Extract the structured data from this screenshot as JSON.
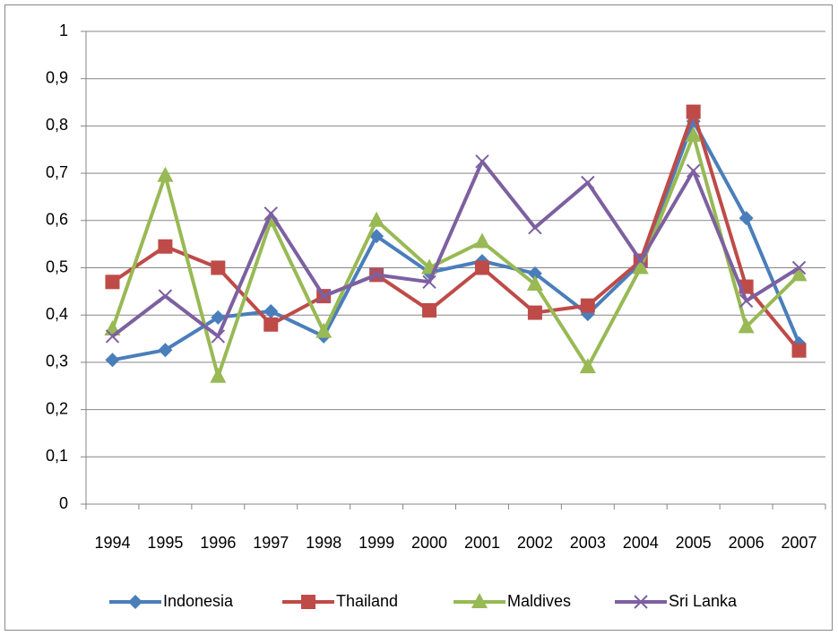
{
  "chart_data": {
    "type": "line",
    "categories": [
      "1994",
      "1995",
      "1996",
      "1997",
      "1998",
      "1999",
      "2000",
      "2001",
      "2002",
      "2003",
      "2004",
      "2005",
      "2006",
      "2007"
    ],
    "series": [
      {
        "name": "Indonesia",
        "color": "#4a7ebb",
        "marker": "diamond",
        "values": [
          0.305,
          0.326,
          0.395,
          0.408,
          0.355,
          0.567,
          0.49,
          0.514,
          0.488,
          0.402,
          0.51,
          0.81,
          0.605,
          0.34
        ]
      },
      {
        "name": "Thailand",
        "color": "#be4b48",
        "marker": "square",
        "values": [
          0.47,
          0.545,
          0.5,
          0.38,
          0.44,
          0.485,
          0.41,
          0.5,
          0.405,
          0.42,
          0.515,
          0.83,
          0.46,
          0.325
        ]
      },
      {
        "name": "Maldives",
        "color": "#98b954",
        "marker": "triangle",
        "values": [
          0.37,
          0.695,
          0.27,
          0.6,
          0.365,
          0.6,
          0.5,
          0.555,
          0.465,
          0.29,
          0.5,
          0.78,
          0.375,
          0.485
        ]
      },
      {
        "name": "Sri Lanka",
        "color": "#7d60a0",
        "marker": "x",
        "values": [
          0.355,
          0.44,
          0.355,
          0.615,
          0.44,
          0.485,
          0.47,
          0.725,
          0.585,
          0.68,
          0.515,
          0.705,
          0.43,
          0.5
        ]
      }
    ],
    "ylim": [
      0,
      1
    ],
    "yticks": [
      0,
      {
        "value": 0.1,
        "label": "0,1"
      },
      {
        "value": 0.2,
        "label": "0,2"
      },
      {
        "value": 0.3,
        "label": "0,3"
      },
      {
        "value": 0.4,
        "label": "0,4"
      },
      {
        "value": 0.5,
        "label": "0,5"
      },
      {
        "value": 0.6,
        "label": "0,6"
      },
      {
        "value": 0.7,
        "label": "0,7"
      },
      {
        "value": 0.8,
        "label": "0,8"
      },
      {
        "value": 0.9,
        "label": "0,9"
      },
      1
    ],
    "grid": true,
    "legend": "bottom"
  }
}
